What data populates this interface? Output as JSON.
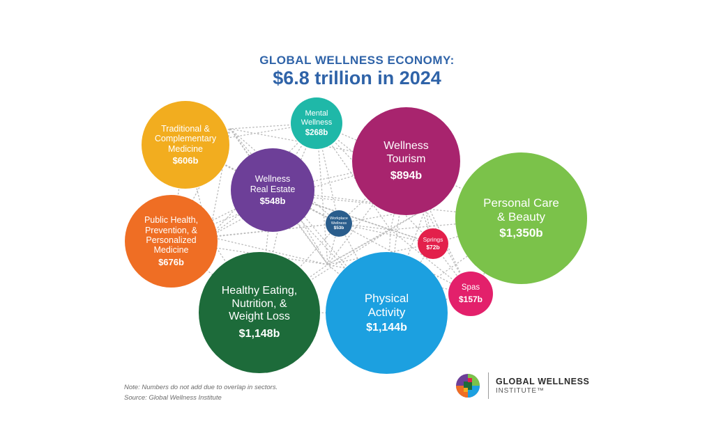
{
  "title_line1": "GLOBAL WELLNESS ECONOMY:",
  "title_line2": "$6.8 trillion in 2024",
  "note": "Note: Numbers do not add due to overlap in sectors.",
  "source": "Source: Global Wellness Institute",
  "logo": {
    "name_line1": "GLOBAL WELLNESS",
    "name_line2": "INSTITUTE™"
  },
  "chart_data": {
    "type": "bubble",
    "unit": "billion USD",
    "total_label": "$6.8 trillion in 2024",
    "categories": [
      {
        "name": "Traditional & Complementary Medicine",
        "value": 606,
        "value_label": "$606b",
        "color": "#f2ad1f"
      },
      {
        "name": "Mental Wellness",
        "value": 268,
        "value_label": "$268b",
        "color": "#1fb8a8"
      },
      {
        "name": "Wellness Tourism",
        "value": 894,
        "value_label": "$894b",
        "color": "#a8246e"
      },
      {
        "name": "Wellness Real Estate",
        "value": 548,
        "value_label": "$548b",
        "color": "#6d3f98"
      },
      {
        "name": "Personal Care & Beauty",
        "value": 1350,
        "value_label": "$1,350b",
        "color": "#7bc24a"
      },
      {
        "name": "Workplace Wellness",
        "value": 53,
        "value_label": "$53b",
        "color": "#2a5d8c"
      },
      {
        "name": "Public Health, Prevention, & Personalized Medicine",
        "value": 676,
        "value_label": "$676b",
        "color": "#ef6e24"
      },
      {
        "name": "Springs",
        "value": 72,
        "value_label": "$72b",
        "color": "#e3204b"
      },
      {
        "name": "Spas",
        "value": 157,
        "value_label": "$157b",
        "color": "#e3206b"
      },
      {
        "name": "Healthy Eating, Nutrition, & Weight Loss",
        "value": 1148,
        "value_label": "$1,148b",
        "color": "#1d6b3a"
      },
      {
        "name": "Physical Activity",
        "value": 1144,
        "value_label": "$1,144b",
        "color": "#1ca0e0"
      }
    ]
  },
  "bubbles": [
    {
      "label": "Traditional &\nComplementary\nMedicine",
      "value": "$606b"
    },
    {
      "label": "Mental\nWellness",
      "value": "$268b"
    },
    {
      "label": "Wellness\nTourism",
      "value": "$894b"
    },
    {
      "label": "Wellness\nReal Estate",
      "value": "$548b"
    },
    {
      "label": "Personal Care\n& Beauty",
      "value": "$1,350b"
    },
    {
      "label": "Workplace\nWellness",
      "value": "$53b"
    },
    {
      "label": "Public Health,\nPrevention, &\nPersonalized\nMedicine",
      "value": "$676b"
    },
    {
      "label": "Springs",
      "value": "$72b"
    },
    {
      "label": "Spas",
      "value": "$157b"
    },
    {
      "label": "Healthy Eating,\nNutrition, &\nWeight Loss",
      "value": "$1,148b"
    },
    {
      "label": "Physical\nActivity",
      "value": "$1,144b"
    }
  ]
}
